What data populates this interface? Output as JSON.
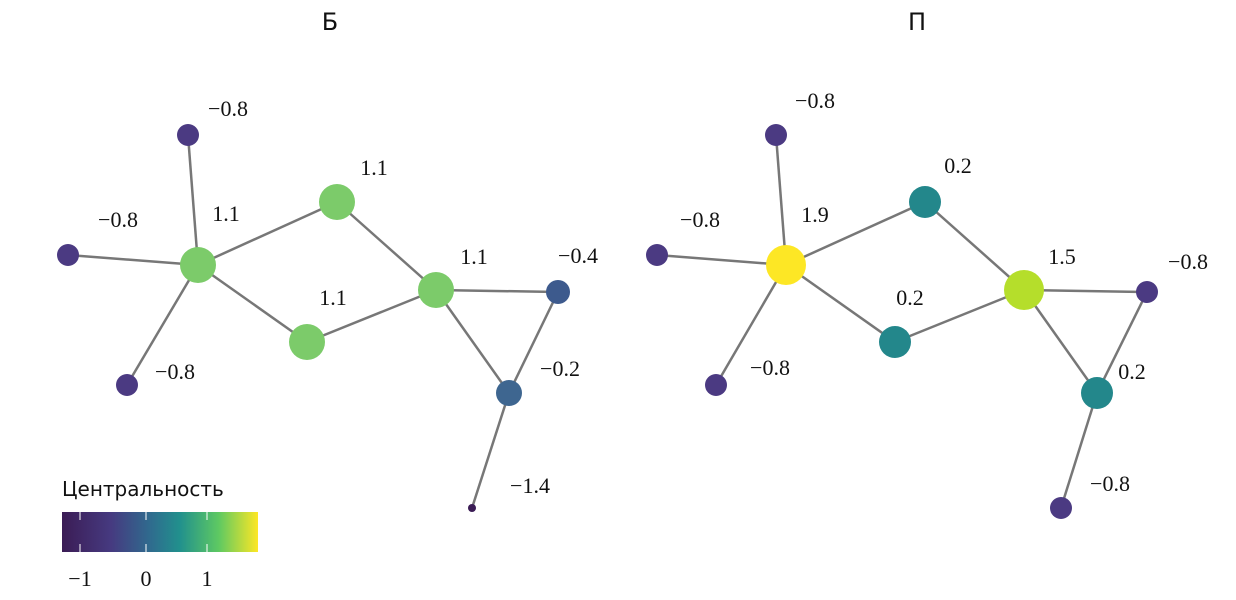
{
  "panels": [
    {
      "title": "Б",
      "nodes": [
        {
          "label": "1.1",
          "color": "#7ccb6a"
        },
        {
          "label": "−0.8",
          "color": "#4b3a82"
        },
        {
          "label": "−0.8",
          "color": "#4b3a82"
        },
        {
          "label": "−0.8",
          "color": "#4b3a82"
        },
        {
          "label": "1.1",
          "color": "#7ccb6a"
        },
        {
          "label": "1.1",
          "color": "#7ccb6a"
        },
        {
          "label": "1.1",
          "color": "#7ccb6a"
        },
        {
          "label": "−0.4",
          "color": "#3d5a8d"
        },
        {
          "label": "−0.2",
          "color": "#3e6690"
        },
        {
          "label": "−1.4",
          "color": "#3b1c55"
        }
      ]
    },
    {
      "title": "П",
      "nodes": [
        {
          "label": "1.9",
          "color": "#fde725"
        },
        {
          "label": "−0.8",
          "color": "#4b3a82"
        },
        {
          "label": "−0.8",
          "color": "#4b3a82"
        },
        {
          "label": "−0.8",
          "color": "#4b3a82"
        },
        {
          "label": "0.2",
          "color": "#23878b"
        },
        {
          "label": "0.2",
          "color": "#23878b"
        },
        {
          "label": "1.5",
          "color": "#b5de2b"
        },
        {
          "label": "−0.8",
          "color": "#4b3a82"
        },
        {
          "label": "0.2",
          "color": "#23878b"
        },
        {
          "label": "−0.8",
          "color": "#4b3a82"
        }
      ]
    }
  ],
  "colorbar": {
    "title": "Центральность",
    "ticks": [
      "−1",
      "0",
      "1"
    ]
  }
}
